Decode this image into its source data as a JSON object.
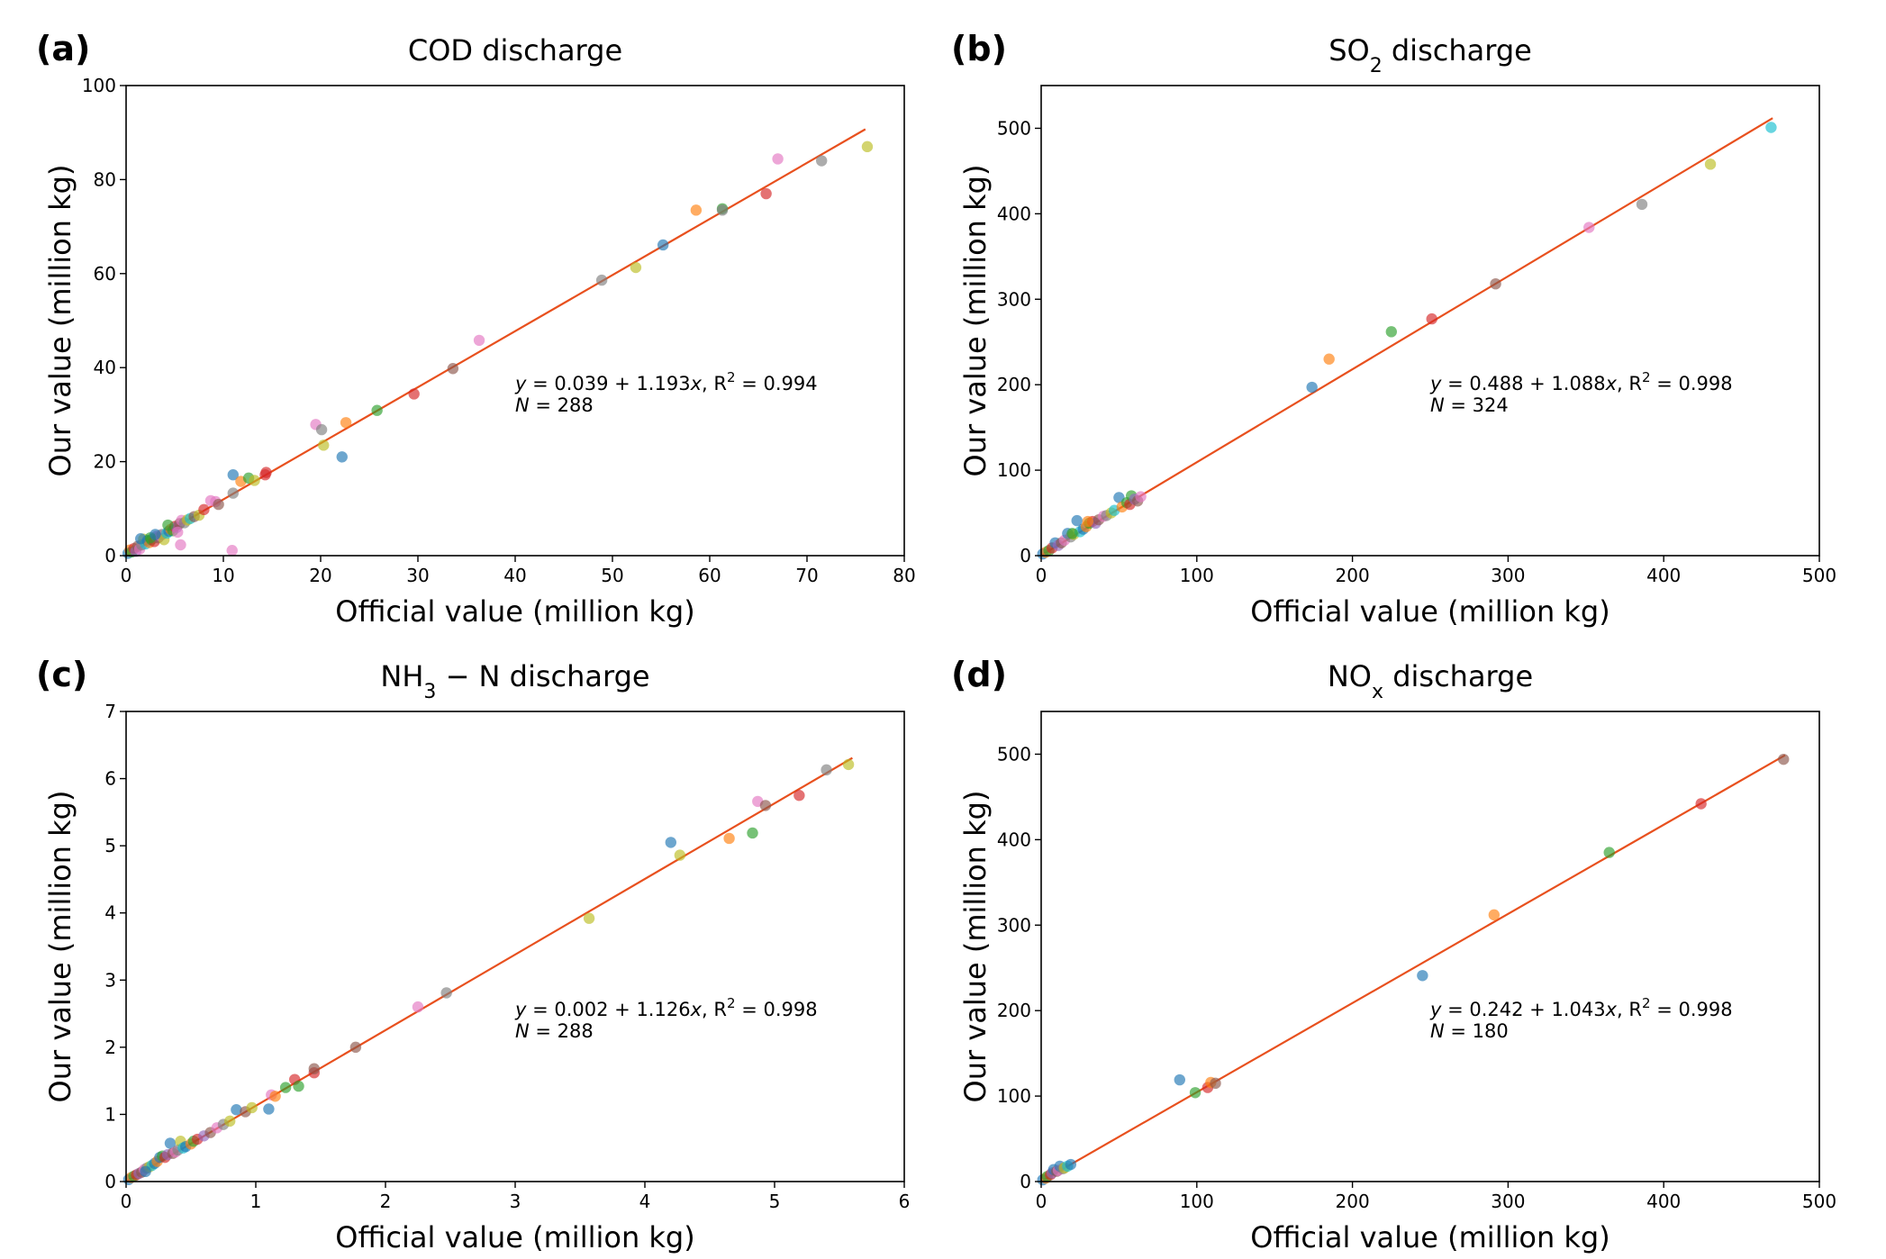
{
  "chart_data": [
    {
      "type": "scatter",
      "panel_label": "(a)",
      "title": "COD discharge",
      "title_parts": [
        {
          "t": "COD discharge",
          "s": ""
        }
      ],
      "xlabel": "Official value (million kg)",
      "ylabel": "Our value (million kg)",
      "xlim": [
        0,
        80
      ],
      "ylim": [
        0,
        100
      ],
      "xticks": [
        0,
        10,
        20,
        30,
        40,
        50,
        60,
        70,
        80
      ],
      "yticks": [
        0,
        20,
        40,
        60,
        80,
        100
      ],
      "fit": {
        "intercept": 0.039,
        "slope": 1.193,
        "r2": 0.994,
        "n": 288,
        "x_range": [
          0,
          76
        ]
      },
      "annotation": {
        "eq_prefix": "y",
        "eq_body": " = 0.039 + 1.193",
        "eq_var": "x",
        "r2_prefix": ", R",
        "r2_sup": "2",
        "r2_value": " = 0.994",
        "n_prefix": "N",
        "n_value": " = 288"
      },
      "points": [
        [
          0.2,
          0.5,
          "#1f77b4"
        ],
        [
          0.4,
          1.2,
          "#ff7f0e"
        ],
        [
          0.6,
          0.8,
          "#2ca02c"
        ],
        [
          0.8,
          1.5,
          "#d62728"
        ],
        [
          1.0,
          0.9,
          "#9467bd"
        ],
        [
          1.2,
          2.0,
          "#8c564b"
        ],
        [
          1.4,
          1.4,
          "#e377c2"
        ],
        [
          1.6,
          2.3,
          "#7f7f7f"
        ],
        [
          1.8,
          3.5,
          "#bcbd22"
        ],
        [
          2.0,
          2.5,
          "#17becf"
        ],
        [
          2.2,
          3.2,
          "#1f77b4"
        ],
        [
          2.4,
          2.8,
          "#ff7f0e"
        ],
        [
          2.6,
          3.4,
          "#2ca02c"
        ],
        [
          2.9,
          3.0,
          "#d62728"
        ],
        [
          3.1,
          4.1,
          "#9467bd"
        ],
        [
          3.3,
          3.8,
          "#8c564b"
        ],
        [
          3.5,
          4.3,
          "#e377c2"
        ],
        [
          3.7,
          4.5,
          "#7f7f7f"
        ],
        [
          3.9,
          3.4,
          "#bcbd22"
        ],
        [
          4.2,
          4.8,
          "#17becf"
        ],
        [
          4.4,
          5.2,
          "#1f77b4"
        ],
        [
          4.6,
          5.6,
          "#ff7f0e"
        ],
        [
          4.8,
          5.3,
          "#2ca02c"
        ],
        [
          5.0,
          6.2,
          "#d62728"
        ],
        [
          5.2,
          6.0,
          "#9467bd"
        ],
        [
          5.5,
          6.8,
          "#8c564b"
        ],
        [
          5.7,
          7.5,
          "#e377c2"
        ],
        [
          6.0,
          7.0,
          "#7f7f7f"
        ],
        [
          6.3,
          7.6,
          "#bcbd22"
        ],
        [
          6.6,
          7.9,
          "#17becf"
        ],
        [
          1.5,
          3.6,
          "#1f77b4"
        ],
        [
          2.5,
          3.8,
          "#2ca02c"
        ],
        [
          3.0,
          4.5,
          "#1f77b4"
        ],
        [
          4.3,
          6.5,
          "#2ca02c"
        ],
        [
          5.6,
          2.3,
          "#e377c2"
        ],
        [
          5.3,
          5.0,
          "#e377c2"
        ],
        [
          7.0,
          8.3,
          "#8c564b"
        ],
        [
          7.5,
          8.6,
          "#bcbd22"
        ],
        [
          8.0,
          9.8,
          "#d62728"
        ],
        [
          8.7,
          11.7,
          "#e377c2"
        ],
        [
          9.2,
          11.5,
          "#e377c2"
        ],
        [
          9.5,
          10.9,
          "#8c564b"
        ],
        [
          11.0,
          17.2,
          "#1f77b4"
        ],
        [
          11.0,
          13.3,
          "#7f7f7f"
        ],
        [
          10.9,
          1.1,
          "#e377c2"
        ],
        [
          11.8,
          15.8,
          "#ff7f0e"
        ],
        [
          12.6,
          16.5,
          "#2ca02c"
        ],
        [
          13.2,
          16.0,
          "#bcbd22"
        ],
        [
          14.3,
          17.2,
          "#d62728"
        ],
        [
          14.4,
          17.7,
          "#d62728"
        ],
        [
          19.5,
          27.9,
          "#e377c2"
        ],
        [
          20.1,
          26.8,
          "#7f7f7f"
        ],
        [
          20.3,
          23.5,
          "#bcbd22"
        ],
        [
          22.2,
          21.0,
          "#1f77b4"
        ],
        [
          22.6,
          28.3,
          "#ff7f0e"
        ],
        [
          25.8,
          30.9,
          "#2ca02c"
        ],
        [
          29.6,
          34.4,
          "#d62728"
        ],
        [
          33.6,
          39.8,
          "#8c564b"
        ],
        [
          36.3,
          45.8,
          "#e377c2"
        ],
        [
          48.9,
          58.6,
          "#7f7f7f"
        ],
        [
          52.4,
          61.3,
          "#bcbd22"
        ],
        [
          55.2,
          66.1,
          "#1f77b4"
        ],
        [
          58.6,
          73.5,
          "#ff7f0e"
        ],
        [
          61.3,
          73.8,
          "#2ca02c"
        ],
        [
          61.3,
          73.5,
          "#7f7f7f"
        ],
        [
          65.8,
          77.0,
          "#d62728"
        ],
        [
          67.0,
          84.4,
          "#e377c2"
        ],
        [
          71.5,
          84.0,
          "#7f7f7f"
        ],
        [
          76.2,
          87.0,
          "#bcbd22"
        ]
      ]
    },
    {
      "type": "scatter",
      "panel_label": "(b)",
      "title": "SO2 discharge",
      "title_parts": [
        {
          "t": "SO",
          "s": ""
        },
        {
          "t": "2",
          "s": "sub"
        },
        {
          "t": " discharge",
          "s": ""
        }
      ],
      "xlabel": "Official value (million kg)",
      "ylabel": "Our value (million kg)",
      "xlim": [
        0,
        500
      ],
      "ylim": [
        0,
        550
      ],
      "xticks": [
        0,
        100,
        200,
        300,
        400,
        500
      ],
      "yticks": [
        0,
        100,
        200,
        300,
        400,
        500
      ],
      "fit": {
        "intercept": 0.488,
        "slope": 1.088,
        "r2": 0.998,
        "n": 324,
        "x_range": [
          0,
          470
        ]
      },
      "annotation": {
        "eq_prefix": "y",
        "eq_body": " = 0.488 + 1.088",
        "eq_var": "x",
        "r2_prefix": ", R",
        "r2_sup": "2",
        "r2_value": " = 0.998",
        "n_prefix": "N",
        "n_value": " = 324"
      },
      "points": [
        [
          1,
          2,
          "#1f77b4"
        ],
        [
          3,
          4,
          "#ff7f0e"
        ],
        [
          5,
          6,
          "#2ca02c"
        ],
        [
          7,
          9,
          "#d62728"
        ],
        [
          9,
          15,
          "#1f77b4"
        ],
        [
          11,
          12,
          "#9467bd"
        ],
        [
          13,
          15,
          "#8c564b"
        ],
        [
          15,
          18,
          "#e377c2"
        ],
        [
          17,
          26,
          "#1f77b4"
        ],
        [
          19,
          22,
          "#7f7f7f"
        ],
        [
          21,
          25,
          "#bcbd22"
        ],
        [
          23,
          41,
          "#1f77b4"
        ],
        [
          25,
          28,
          "#17becf"
        ],
        [
          27,
          31,
          "#1f77b4"
        ],
        [
          29,
          34,
          "#ff7f0e"
        ],
        [
          31,
          38,
          "#2ca02c"
        ],
        [
          33,
          40,
          "#d62728"
        ],
        [
          35,
          38,
          "#9467bd"
        ],
        [
          37,
          42,
          "#8c564b"
        ],
        [
          40,
          46,
          "#e377c2"
        ],
        [
          42,
          47,
          "#7f7f7f"
        ],
        [
          45,
          50,
          "#bcbd22"
        ],
        [
          47,
          53,
          "#17becf"
        ],
        [
          50,
          68,
          "#1f77b4"
        ],
        [
          52,
          57,
          "#ff7f0e"
        ],
        [
          55,
          62,
          "#2ca02c"
        ],
        [
          57,
          60,
          "#d62728"
        ],
        [
          58,
          70,
          "#2ca02c"
        ],
        [
          60,
          66,
          "#9467bd"
        ],
        [
          62,
          64,
          "#8c564b"
        ],
        [
          64,
          69,
          "#e377c2"
        ],
        [
          30,
          40,
          "#ff7f0e"
        ],
        [
          20,
          26,
          "#2ca02c"
        ],
        [
          174,
          197,
          "#1f77b4"
        ],
        [
          185,
          230,
          "#ff7f0e"
        ],
        [
          225,
          262,
          "#2ca02c"
        ],
        [
          251,
          277,
          "#d62728"
        ],
        [
          292,
          318,
          "#8c564b"
        ],
        [
          352,
          384,
          "#e377c2"
        ],
        [
          386,
          411,
          "#7f7f7f"
        ],
        [
          430,
          458,
          "#bcbd22"
        ],
        [
          469,
          501,
          "#17becf"
        ]
      ]
    },
    {
      "type": "scatter",
      "panel_label": "(c)",
      "title": "NH3 − N discharge",
      "title_parts": [
        {
          "t": "NH",
          "s": ""
        },
        {
          "t": "3",
          "s": "sub"
        },
        {
          "t": " − N discharge",
          "s": ""
        }
      ],
      "xlabel": "Official value (million kg)",
      "ylabel": "Our value (million kg)",
      "xlim": [
        0,
        6
      ],
      "ylim": [
        0,
        7
      ],
      "xticks": [
        0,
        1,
        2,
        3,
        4,
        5,
        6
      ],
      "yticks": [
        0,
        1,
        2,
        3,
        4,
        5,
        6,
        7
      ],
      "fit": {
        "intercept": 0.002,
        "slope": 1.126,
        "r2": 0.998,
        "n": 288,
        "x_range": [
          0,
          5.6
        ]
      },
      "annotation": {
        "eq_prefix": "y",
        "eq_body": " = 0.002 + 1.126",
        "eq_var": "x",
        "r2_prefix": ", R",
        "r2_sup": "2",
        "r2_value": " = 0.998",
        "n_prefix": "N",
        "n_value": " = 288"
      },
      "points": [
        [
          0.02,
          0.03,
          "#1f77b4"
        ],
        [
          0.04,
          0.06,
          "#ff7f0e"
        ],
        [
          0.06,
          0.08,
          "#2ca02c"
        ],
        [
          0.08,
          0.1,
          "#d62728"
        ],
        [
          0.1,
          0.12,
          "#9467bd"
        ],
        [
          0.12,
          0.14,
          "#8c564b"
        ],
        [
          0.14,
          0.18,
          "#e377c2"
        ],
        [
          0.16,
          0.2,
          "#7f7f7f"
        ],
        [
          0.18,
          0.22,
          "#bcbd22"
        ],
        [
          0.2,
          0.24,
          "#17becf"
        ],
        [
          0.22,
          0.27,
          "#1f77b4"
        ],
        [
          0.24,
          0.3,
          "#ff7f0e"
        ],
        [
          0.26,
          0.36,
          "#1f77b4"
        ],
        [
          0.28,
          0.38,
          "#2ca02c"
        ],
        [
          0.3,
          0.36,
          "#d62728"
        ],
        [
          0.32,
          0.4,
          "#9467bd"
        ],
        [
          0.34,
          0.57,
          "#1f77b4"
        ],
        [
          0.36,
          0.42,
          "#8c564b"
        ],
        [
          0.38,
          0.44,
          "#e377c2"
        ],
        [
          0.4,
          0.47,
          "#7f7f7f"
        ],
        [
          0.42,
          0.6,
          "#bcbd22"
        ],
        [
          0.44,
          0.5,
          "#17becf"
        ],
        [
          0.46,
          0.52,
          "#1f77b4"
        ],
        [
          0.5,
          0.56,
          "#ff7f0e"
        ],
        [
          0.52,
          0.6,
          "#2ca02c"
        ],
        [
          0.55,
          0.63,
          "#d62728"
        ],
        [
          0.6,
          0.68,
          "#9467bd"
        ],
        [
          0.65,
          0.73,
          "#8c564b"
        ],
        [
          0.7,
          0.8,
          "#e377c2"
        ],
        [
          0.75,
          0.85,
          "#7f7f7f"
        ],
        [
          0.8,
          0.9,
          "#bcbd22"
        ],
        [
          0.15,
          0.15,
          "#1f77b4"
        ],
        [
          0.85,
          1.07,
          "#1f77b4"
        ],
        [
          0.92,
          1.04,
          "#8c564b"
        ],
        [
          0.97,
          1.1,
          "#bcbd22"
        ],
        [
          1.1,
          1.08,
          "#1f77b4"
        ],
        [
          1.12,
          1.29,
          "#e377c2"
        ],
        [
          1.15,
          1.27,
          "#ff7f0e"
        ],
        [
          1.23,
          1.4,
          "#2ca02c"
        ],
        [
          1.3,
          1.52,
          "#d62728"
        ],
        [
          1.33,
          1.42,
          "#2ca02c"
        ],
        [
          1.45,
          1.62,
          "#d62728"
        ],
        [
          1.45,
          1.68,
          "#8c564b"
        ],
        [
          1.77,
          2.0,
          "#8c564b"
        ],
        [
          2.25,
          2.6,
          "#e377c2"
        ],
        [
          2.47,
          2.81,
          "#7f7f7f"
        ],
        [
          3.57,
          3.92,
          "#bcbd22"
        ],
        [
          4.2,
          5.05,
          "#1f77b4"
        ],
        [
          4.27,
          4.86,
          "#bcbd22"
        ],
        [
          4.65,
          5.11,
          "#ff7f0e"
        ],
        [
          4.83,
          5.19,
          "#2ca02c"
        ],
        [
          4.87,
          5.66,
          "#e377c2"
        ],
        [
          4.93,
          5.6,
          "#8c564b"
        ],
        [
          5.19,
          5.75,
          "#d62728"
        ],
        [
          5.4,
          6.13,
          "#7f7f7f"
        ],
        [
          5.57,
          6.21,
          "#bcbd22"
        ]
      ]
    },
    {
      "type": "scatter",
      "panel_label": "(d)",
      "title": "NOx discharge",
      "title_parts": [
        {
          "t": "NO",
          "s": ""
        },
        {
          "t": "x",
          "s": "sub"
        },
        {
          "t": " discharge",
          "s": ""
        }
      ],
      "xlabel": "Official value (million kg)",
      "ylabel": "Our value (million kg)",
      "xlim": [
        0,
        500
      ],
      "ylim": [
        0,
        550
      ],
      "xticks": [
        0,
        100,
        200,
        300,
        400,
        500
      ],
      "yticks": [
        0,
        100,
        200,
        300,
        400,
        500
      ],
      "fit": {
        "intercept": 0.242,
        "slope": 1.043,
        "r2": 0.998,
        "n": 180,
        "x_range": [
          0,
          478
        ]
      },
      "annotation": {
        "eq_prefix": "y",
        "eq_body": " = 0.242 + 1.043",
        "eq_var": "x",
        "r2_prefix": ", R",
        "r2_sup": "2",
        "r2_value": " = 0.998",
        "n_prefix": "N",
        "n_value": " = 180"
      },
      "points": [
        [
          1,
          2,
          "#1f77b4"
        ],
        [
          3,
          4,
          "#ff7f0e"
        ],
        [
          4,
          6,
          "#2ca02c"
        ],
        [
          6,
          8,
          "#d62728"
        ],
        [
          7,
          10,
          "#9467bd"
        ],
        [
          8,
          14,
          "#1f77b4"
        ],
        [
          10,
          12,
          "#8c564b"
        ],
        [
          11,
          13,
          "#e377c2"
        ],
        [
          12,
          18,
          "#1f77b4"
        ],
        [
          14,
          15,
          "#7f7f7f"
        ],
        [
          15,
          16,
          "#bcbd22"
        ],
        [
          17,
          18,
          "#17becf"
        ],
        [
          19,
          20,
          "#1f77b4"
        ],
        [
          89,
          119,
          "#1f77b4"
        ],
        [
          99,
          104,
          "#2ca02c"
        ],
        [
          107,
          110,
          "#d62728"
        ],
        [
          109,
          116,
          "#ff7f0e"
        ],
        [
          112,
          115,
          "#8c564b"
        ],
        [
          245,
          241,
          "#1f77b4"
        ],
        [
          291,
          312,
          "#ff7f0e"
        ],
        [
          365,
          385,
          "#2ca02c"
        ],
        [
          424,
          442,
          "#d62728"
        ],
        [
          477,
          494,
          "#8c564b"
        ]
      ]
    }
  ]
}
